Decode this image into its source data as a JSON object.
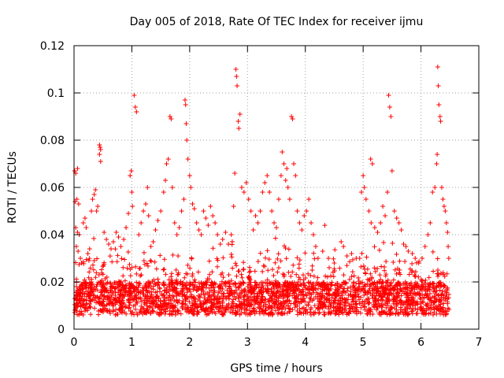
{
  "chart_data": {
    "type": "scatter",
    "title": "Day 005 of 2018, Rate Of TEC Index for receiver ijmu",
    "xlabel": "GPS time / hours",
    "ylabel": "ROTI / TECUs",
    "xlim": [
      0,
      7
    ],
    "ylim": [
      0,
      0.12
    ],
    "x_ticks": [
      0,
      1,
      2,
      3,
      4,
      5,
      6,
      7
    ],
    "y_ticks": [
      0,
      0.02,
      0.04,
      0.06,
      0.08,
      0.1,
      0.12
    ],
    "x_tick_labels": [
      "0",
      "1",
      "2",
      "3",
      "4",
      "5",
      "6",
      "7"
    ],
    "y_tick_labels": [
      "0",
      "0.02",
      "0.04",
      "0.06",
      "0.08",
      "0.1",
      "0.12"
    ],
    "grid": true,
    "marker": "+",
    "color": "#ff0000",
    "series": [
      {
        "name": "ROTI",
        "points": [
          [
            0.01,
            0.067
          ],
          [
            0.03,
            0.066
          ],
          [
            0.06,
            0.068
          ],
          [
            0.02,
            0.054
          ],
          [
            0.05,
            0.055
          ],
          [
            0.08,
            0.053
          ],
          [
            0.03,
            0.043
          ],
          [
            0.06,
            0.041
          ],
          [
            0.09,
            0.04
          ],
          [
            0.04,
            0.035
          ],
          [
            0.07,
            0.033
          ],
          [
            0.11,
            0.03
          ],
          [
            0.13,
            0.028
          ],
          [
            0.16,
            0.045
          ],
          [
            0.19,
            0.047
          ],
          [
            0.21,
            0.043
          ],
          [
            0.24,
            0.032
          ],
          [
            0.27,
            0.034
          ],
          [
            0.3,
            0.05
          ],
          [
            0.32,
            0.055
          ],
          [
            0.35,
            0.057
          ],
          [
            0.37,
            0.059
          ],
          [
            0.39,
            0.05
          ],
          [
            0.41,
            0.052
          ],
          [
            0.44,
            0.078
          ],
          [
            0.45,
            0.077
          ],
          [
            0.46,
            0.076
          ],
          [
            0.44,
            0.074
          ],
          [
            0.46,
            0.071
          ],
          [
            0.52,
            0.041
          ],
          [
            0.56,
            0.038
          ],
          [
            0.6,
            0.036
          ],
          [
            0.64,
            0.034
          ],
          [
            0.68,
            0.037
          ],
          [
            0.73,
            0.041
          ],
          [
            0.77,
            0.039
          ],
          [
            0.81,
            0.035
          ],
          [
            0.86,
            0.038
          ],
          [
            0.9,
            0.043
          ],
          [
            0.94,
            0.049
          ],
          [
            0.97,
            0.065
          ],
          [
            0.99,
            0.067
          ],
          [
            1.0,
            0.058
          ],
          [
            1.01,
            0.052
          ],
          [
            1.04,
            0.099
          ],
          [
            1.06,
            0.094
          ],
          [
            1.08,
            0.092
          ],
          [
            1.12,
            0.04
          ],
          [
            1.16,
            0.045
          ],
          [
            1.2,
            0.05
          ],
          [
            1.24,
            0.053
          ],
          [
            1.27,
            0.06
          ],
          [
            1.29,
            0.048
          ],
          [
            1.33,
            0.035
          ],
          [
            1.37,
            0.037
          ],
          [
            1.41,
            0.042
          ],
          [
            1.45,
            0.046
          ],
          [
            1.5,
            0.05
          ],
          [
            1.55,
            0.058
          ],
          [
            1.58,
            0.063
          ],
          [
            1.6,
            0.07
          ],
          [
            1.63,
            0.072
          ],
          [
            1.66,
            0.09
          ],
          [
            1.68,
            0.089
          ],
          [
            1.7,
            0.06
          ],
          [
            1.74,
            0.045
          ],
          [
            1.78,
            0.04
          ],
          [
            1.82,
            0.043
          ],
          [
            1.86,
            0.05
          ],
          [
            1.9,
            0.055
          ],
          [
            1.92,
            0.097
          ],
          [
            1.93,
            0.095
          ],
          [
            1.94,
            0.087
          ],
          [
            1.95,
            0.08
          ],
          [
            1.97,
            0.072
          ],
          [
            2.0,
            0.065
          ],
          [
            2.02,
            0.06
          ],
          [
            2.05,
            0.053
          ],
          [
            2.08,
            0.051
          ],
          [
            2.12,
            0.045
          ],
          [
            2.16,
            0.042
          ],
          [
            2.2,
            0.04
          ],
          [
            2.24,
            0.05
          ],
          [
            2.28,
            0.047
          ],
          [
            2.32,
            0.044
          ],
          [
            2.36,
            0.052
          ],
          [
            2.4,
            0.048
          ],
          [
            2.44,
            0.045
          ],
          [
            2.48,
            0.04
          ],
          [
            2.53,
            0.036
          ],
          [
            2.57,
            0.038
          ],
          [
            2.62,
            0.041
          ],
          [
            2.67,
            0.036
          ],
          [
            2.72,
            0.04
          ],
          [
            2.76,
            0.052
          ],
          [
            2.78,
            0.066
          ],
          [
            2.8,
            0.11
          ],
          [
            2.81,
            0.107
          ],
          [
            2.82,
            0.103
          ],
          [
            2.84,
            0.088
          ],
          [
            2.85,
            0.085
          ],
          [
            2.87,
            0.091
          ],
          [
            2.9,
            0.06
          ],
          [
            2.94,
            0.058
          ],
          [
            2.98,
            0.062
          ],
          [
            3.02,
            0.055
          ],
          [
            3.06,
            0.05
          ],
          [
            3.1,
            0.042
          ],
          [
            3.14,
            0.048
          ],
          [
            3.18,
            0.045
          ],
          [
            3.22,
            0.05
          ],
          [
            3.26,
            0.058
          ],
          [
            3.3,
            0.062
          ],
          [
            3.34,
            0.065
          ],
          [
            3.38,
            0.058
          ],
          [
            3.42,
            0.05
          ],
          [
            3.46,
            0.045
          ],
          [
            3.5,
            0.043
          ],
          [
            3.54,
            0.055
          ],
          [
            3.58,
            0.065
          ],
          [
            3.6,
            0.075
          ],
          [
            3.63,
            0.07
          ],
          [
            3.66,
            0.063
          ],
          [
            3.68,
            0.068
          ],
          [
            3.7,
            0.06
          ],
          [
            3.73,
            0.055
          ],
          [
            3.76,
            0.09
          ],
          [
            3.78,
            0.089
          ],
          [
            3.8,
            0.07
          ],
          [
            3.83,
            0.065
          ],
          [
            3.86,
            0.05
          ],
          [
            3.9,
            0.045
          ],
          [
            3.94,
            0.042
          ],
          [
            3.98,
            0.048
          ],
          [
            4.02,
            0.05
          ],
          [
            4.06,
            0.055
          ],
          [
            4.1,
            0.045
          ],
          [
            4.14,
            0.04
          ],
          [
            4.18,
            0.035
          ],
          [
            4.22,
            0.03
          ],
          [
            4.3,
            0.033
          ],
          [
            4.4,
            0.03
          ],
          [
            4.5,
            0.028
          ],
          [
            4.62,
            0.037
          ],
          [
            4.66,
            0.035
          ],
          [
            4.72,
            0.031
          ],
          [
            4.8,
            0.032
          ],
          [
            4.88,
            0.03
          ],
          [
            4.94,
            0.03
          ],
          [
            4.97,
            0.058
          ],
          [
            5.0,
            0.065
          ],
          [
            5.02,
            0.06
          ],
          [
            5.05,
            0.055
          ],
          [
            5.1,
            0.05
          ],
          [
            5.13,
            0.072
          ],
          [
            5.16,
            0.07
          ],
          [
            5.2,
            0.043
          ],
          [
            5.25,
            0.041
          ],
          [
            5.3,
            0.045
          ],
          [
            5.34,
            0.052
          ],
          [
            5.38,
            0.048
          ],
          [
            5.42,
            0.058
          ],
          [
            5.44,
            0.099
          ],
          [
            5.46,
            0.094
          ],
          [
            5.48,
            0.09
          ],
          [
            5.5,
            0.067
          ],
          [
            5.54,
            0.05
          ],
          [
            5.58,
            0.047
          ],
          [
            5.62,
            0.045
          ],
          [
            5.66,
            0.042
          ],
          [
            5.7,
            0.036
          ],
          [
            5.74,
            0.035
          ],
          [
            5.78,
            0.033
          ],
          [
            5.85,
            0.032
          ],
          [
            5.9,
            0.03
          ],
          [
            5.96,
            0.028
          ],
          [
            6.02,
            0.03
          ],
          [
            6.07,
            0.035
          ],
          [
            6.12,
            0.04
          ],
          [
            6.16,
            0.045
          ],
          [
            6.2,
            0.058
          ],
          [
            6.24,
            0.06
          ],
          [
            6.27,
            0.07
          ],
          [
            6.28,
            0.074
          ],
          [
            6.29,
            0.111
          ],
          [
            6.3,
            0.103
          ],
          [
            6.31,
            0.095
          ],
          [
            6.33,
            0.09
          ],
          [
            6.34,
            0.088
          ],
          [
            6.36,
            0.06
          ],
          [
            6.38,
            0.055
          ],
          [
            6.4,
            0.052
          ],
          [
            6.42,
            0.05
          ],
          [
            6.44,
            0.045
          ],
          [
            6.46,
            0.041
          ],
          [
            6.47,
            0.035
          ],
          [
            6.48,
            0.03
          ]
        ]
      }
    ]
  }
}
